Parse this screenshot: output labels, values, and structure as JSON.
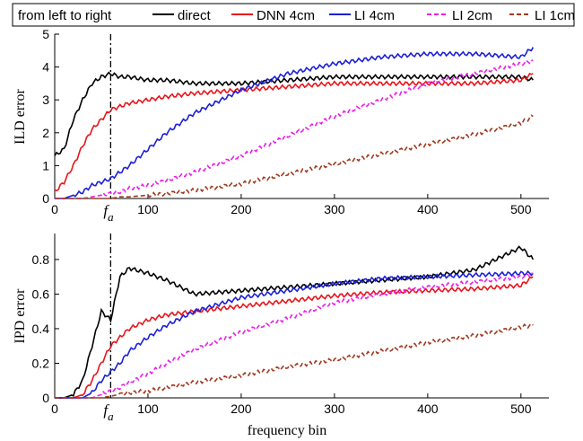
{
  "legend": {
    "title": "from left to right",
    "entries": [
      {
        "label": "direct",
        "color": "#000000",
        "dash": "solid"
      },
      {
        "label": "DNN 4cm",
        "color": "#e8141b",
        "dash": "solid"
      },
      {
        "label": "LI 4cm",
        "color": "#1b1fd8",
        "dash": "solid"
      },
      {
        "label": "LI 2cm",
        "color": "#ea1fe8",
        "dash": "dashed"
      },
      {
        "label": "LI 1cm",
        "color": "#a0391e",
        "dash": "dashed"
      }
    ]
  },
  "marker": {
    "label": "f",
    "subscript": "a",
    "x": 60
  },
  "xlabel": "frequency bin",
  "chart_data": [
    {
      "type": "line",
      "ylabel": "ILD error",
      "xlabel": "",
      "xlim": [
        0,
        530
      ],
      "ylim": [
        0,
        5
      ],
      "xticks": [
        0,
        100,
        200,
        300,
        400,
        500
      ],
      "yticks": [
        0,
        1,
        2,
        3,
        4,
        5
      ],
      "grid": false,
      "x": [
        0,
        10,
        20,
        30,
        40,
        50,
        60,
        70,
        80,
        100,
        120,
        150,
        200,
        250,
        300,
        350,
        400,
        450,
        500,
        513
      ],
      "series": [
        {
          "name": "direct",
          "values": [
            1.3,
            1.5,
            2.4,
            3.0,
            3.5,
            3.7,
            3.8,
            3.7,
            3.7,
            3.6,
            3.6,
            3.5,
            3.5,
            3.6,
            3.7,
            3.7,
            3.7,
            3.7,
            3.7,
            3.6
          ]
        },
        {
          "name": "DNN 4cm",
          "values": [
            0.2,
            0.5,
            1.0,
            1.6,
            2.1,
            2.4,
            2.7,
            2.8,
            2.9,
            3.0,
            3.1,
            3.2,
            3.3,
            3.4,
            3.5,
            3.5,
            3.5,
            3.5,
            3.6,
            3.8
          ]
        },
        {
          "name": "LI 4cm",
          "values": [
            0.0,
            0.0,
            0.1,
            0.2,
            0.4,
            0.5,
            0.6,
            0.8,
            1.0,
            1.5,
            2.0,
            2.6,
            3.3,
            3.8,
            4.1,
            4.3,
            4.4,
            4.4,
            4.3,
            4.6
          ]
        },
        {
          "name": "LI 2cm",
          "values": [
            0.0,
            0.0,
            0.0,
            0.0,
            0.05,
            0.1,
            0.15,
            0.2,
            0.3,
            0.4,
            0.55,
            0.8,
            1.3,
            1.9,
            2.5,
            3.0,
            3.5,
            3.8,
            4.1,
            4.2
          ]
        },
        {
          "name": "LI 1cm",
          "values": [
            0.0,
            0.0,
            0.0,
            0.0,
            0.0,
            0.0,
            0.0,
            0.05,
            0.05,
            0.1,
            0.15,
            0.25,
            0.45,
            0.75,
            1.05,
            1.35,
            1.65,
            1.95,
            2.3,
            2.5
          ]
        }
      ]
    },
    {
      "type": "line",
      "ylabel": "IPD error",
      "xlabel": "frequency bin",
      "xlim": [
        0,
        530
      ],
      "ylim": [
        0,
        0.95
      ],
      "xticks": [
        0,
        100,
        200,
        300,
        400,
        500
      ],
      "yticks": [
        0,
        0.2,
        0.4,
        0.6,
        0.8
      ],
      "grid": false,
      "x": [
        0,
        10,
        20,
        30,
        40,
        50,
        60,
        70,
        80,
        100,
        120,
        150,
        200,
        250,
        300,
        350,
        400,
        450,
        500,
        513
      ],
      "series": [
        {
          "name": "direct",
          "values": [
            0.0,
            0.0,
            0.02,
            0.1,
            0.3,
            0.5,
            0.45,
            0.7,
            0.75,
            0.72,
            0.68,
            0.6,
            0.62,
            0.64,
            0.66,
            0.68,
            0.7,
            0.74,
            0.87,
            0.8
          ]
        },
        {
          "name": "DNN 4cm",
          "values": [
            0.0,
            0.0,
            0.0,
            0.02,
            0.1,
            0.2,
            0.3,
            0.35,
            0.4,
            0.45,
            0.48,
            0.5,
            0.53,
            0.56,
            0.59,
            0.61,
            0.62,
            0.63,
            0.65,
            0.7
          ]
        },
        {
          "name": "LI 4cm",
          "values": [
            0.0,
            0.0,
            0.0,
            0.0,
            0.03,
            0.1,
            0.15,
            0.2,
            0.27,
            0.35,
            0.42,
            0.5,
            0.58,
            0.62,
            0.66,
            0.69,
            0.7,
            0.71,
            0.72,
            0.72
          ]
        },
        {
          "name": "LI 2cm",
          "values": [
            0.0,
            0.0,
            0.0,
            0.0,
            0.0,
            0.02,
            0.04,
            0.06,
            0.09,
            0.14,
            0.2,
            0.28,
            0.38,
            0.46,
            0.55,
            0.6,
            0.64,
            0.67,
            0.7,
            0.72
          ]
        },
        {
          "name": "LI 1cm",
          "values": [
            0.0,
            0.0,
            0.0,
            0.0,
            0.0,
            0.0,
            0.01,
            0.02,
            0.03,
            0.04,
            0.06,
            0.09,
            0.13,
            0.18,
            0.22,
            0.27,
            0.32,
            0.36,
            0.41,
            0.42
          ]
        }
      ]
    }
  ]
}
